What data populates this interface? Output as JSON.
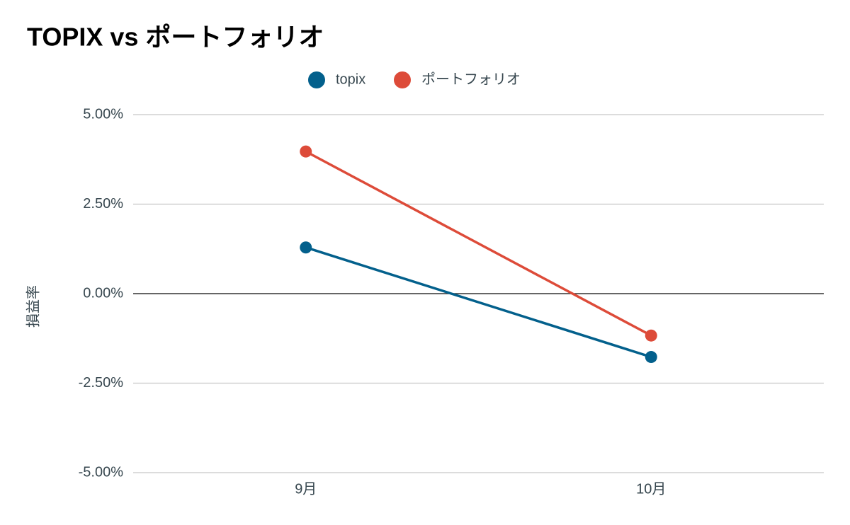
{
  "chart_data": {
    "type": "line",
    "title": "TOPIX vs ポートフォリオ",
    "y_label": "損益率",
    "categories": [
      "9月",
      "10月"
    ],
    "series": [
      {
        "name": "topix",
        "color": "#03608c",
        "values": [
          1.29,
          -1.77
        ]
      },
      {
        "name": "ポートフォリオ",
        "color": "#dd4b39",
        "values": [
          3.97,
          -1.17
        ]
      }
    ],
    "ylim": [
      -5,
      5
    ],
    "yticks": [
      {
        "value": -5,
        "label": "-5.00%"
      },
      {
        "value": -2.5,
        "label": "-2.50%"
      },
      {
        "value": 0,
        "label": "0.00%"
      },
      {
        "value": 2.5,
        "label": "2.50%"
      },
      {
        "value": 5,
        "label": "5.00%"
      }
    ],
    "grid": true,
    "legend": "top"
  }
}
